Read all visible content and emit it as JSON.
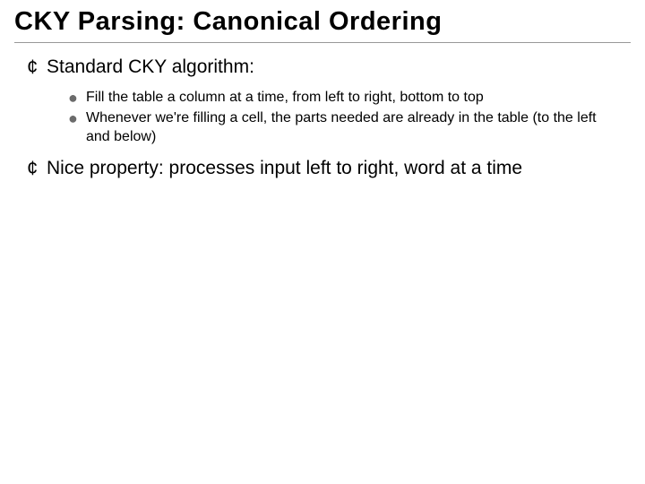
{
  "title": "CKY Parsing: Canonical Ordering",
  "colors": {
    "text": "#000000",
    "background": "#ffffff",
    "rule": "#999999",
    "bullet_l1": "#000000",
    "bullet_l2": "#6b6b6b"
  },
  "typography": {
    "title_fontsize": 29,
    "title_weight": 900,
    "level1_fontsize": 21,
    "level2_fontsize": 16,
    "font_family": "Arial"
  },
  "bullets": {
    "level1_glyph": "¢",
    "level2_glyph": "●"
  },
  "items": [
    {
      "text": "Standard CKY algorithm:",
      "children": [
        {
          "text": "Fill the table a column at a time, from left to right, bottom to top"
        },
        {
          "text": "Whenever we're filling a cell, the parts needed are already in the table (to the left and below)"
        }
      ]
    },
    {
      "text": "Nice property: processes input left to right, word at a time",
      "children": []
    }
  ]
}
